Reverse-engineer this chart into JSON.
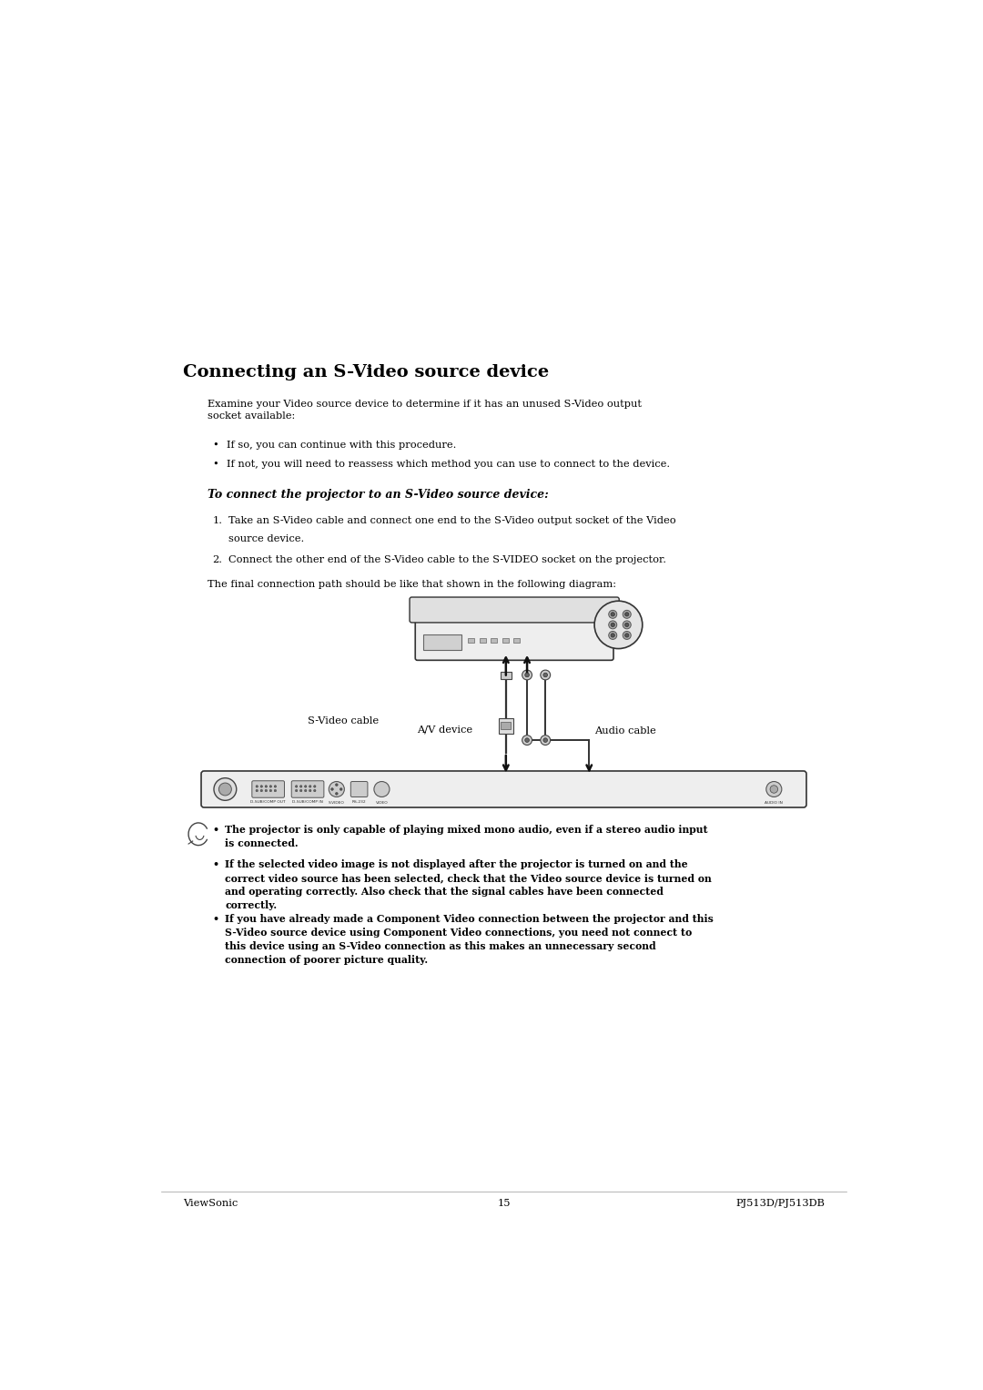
{
  "bg_color": "#ffffff",
  "text_color": "#000000",
  "page_width": 10.8,
  "page_height": 15.27,
  "heading": "Connecting an S-Video source device",
  "intro_text": "Examine your Video source device to determine if it has an unused S-Video output\nsocket available:",
  "bullet1": "If so, you can continue with this procedure.",
  "bullet2": "If not, you will need to reassess which method you can use to connect to the device.",
  "subheading": "To connect the projector to an S-Video source device:",
  "step1a": "Take an S-Video cable and connect one end to the S-Video output socket of the Video",
  "step1b": "source device.",
  "step2": "Connect the other end of the S-Video cable to the S-VIDEO socket on the projector.",
  "final_text": "The final connection path should be like that shown in the following diagram:",
  "label_av": "A/V device",
  "label_audio": "Audio cable",
  "label_svideo": "S-Video cable",
  "note1": "The projector is only capable of playing mixed mono audio, even if a stereo audio input\nis connected.",
  "note2": "If the selected video image is not displayed after the projector is turned on and the\ncorrect video source has been selected, check that the Video source device is turned on\nand operating correctly. Also check that the signal cables have been connected\ncorrectly.",
  "note3": "If you have already made a Component Video connection between the projector and this\nS-Video source device using Component Video connections, you need not connect to\nthis device using an S-Video connection as this makes an unnecessary second\nconnection of poorer picture quality.",
  "footer_left": "ViewSonic",
  "footer_center": "15",
  "footer_right": "PJ513D/PJ513DB"
}
